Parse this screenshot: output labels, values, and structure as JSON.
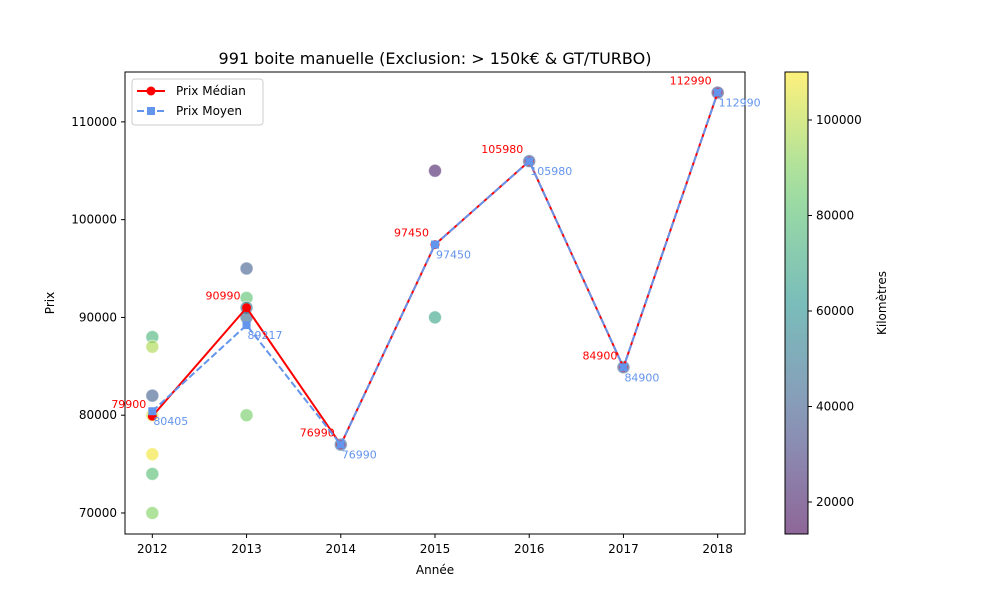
{
  "chart_data": {
    "type": "line",
    "title": "991 boite manuelle (Exclusion: > 150k€ & GT/TURBO)",
    "xlabel": "Année",
    "ylabel": "Prix",
    "xlim": [
      2011.71,
      2018.29
    ],
    "ylim": [
      67850,
      115100
    ],
    "xticks": [
      2012,
      2013,
      2014,
      2015,
      2016,
      2017,
      2018
    ],
    "yticks": [
      70000,
      80000,
      90000,
      100000,
      110000
    ],
    "legend": {
      "placement": "top-left",
      "entries": [
        "Prix Médian",
        "Prix Moyen"
      ]
    },
    "series": [
      {
        "name": "Prix Médian",
        "color": "#ff0000",
        "style": "solid",
        "marker": "circle",
        "x": [
          2012,
          2013,
          2014,
          2015,
          2016,
          2017,
          2018
        ],
        "values": [
          79900,
          90990,
          76990,
          97450,
          105980,
          84900,
          112990
        ],
        "labels": [
          "79900",
          "90990",
          "76990",
          "97450",
          "105980",
          "84900",
          "112990"
        ]
      },
      {
        "name": "Prix Moyen",
        "color": "#6495ed",
        "style": "dashed",
        "marker": "square",
        "x": [
          2012,
          2013,
          2014,
          2015,
          2016,
          2017,
          2018
        ],
        "values": [
          80405,
          89217,
          76990,
          97450,
          105980,
          84900,
          112990
        ],
        "labels": [
          "80405",
          "89217",
          "76990",
          "97450",
          "105980",
          "84900",
          "112990"
        ]
      }
    ],
    "scatter": {
      "x": [
        2012,
        2012,
        2012,
        2012,
        2012,
        2012,
        2012,
        2013,
        2013,
        2013,
        2013,
        2013,
        2014,
        2015,
        2015,
        2016,
        2017,
        2018
      ],
      "y": [
        88000,
        87000,
        82000,
        80000,
        76000,
        74000,
        70000,
        95000,
        92000,
        90990,
        90000,
        80000,
        76990,
        105000,
        90000,
        105980,
        84900,
        112990
      ],
      "km": [
        75000,
        97000,
        40000,
        105000,
        108000,
        80000,
        90000,
        40000,
        82000,
        50000,
        45000,
        88000,
        42000,
        20000,
        68000,
        40000,
        40000,
        30000
      ]
    },
    "colorbar": {
      "label": "Kilomètres",
      "range": [
        13300,
        110050
      ],
      "ticks": [
        20000,
        40000,
        60000,
        80000,
        100000
      ],
      "colormap": "viridis"
    }
  }
}
